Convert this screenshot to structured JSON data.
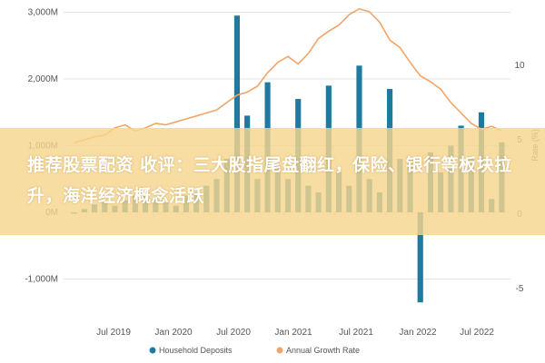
{
  "chart_data": {
    "type": "bar",
    "series": [
      {
        "name": "Household Deposits",
        "mark": "bar",
        "axis": "left",
        "color": "#1f7aa0",
        "values": [
          -20,
          50,
          120,
          150,
          100,
          180,
          250,
          300,
          200,
          150,
          100,
          250,
          300,
          400,
          500,
          800,
          2950,
          1450,
          500,
          1950,
          700,
          500,
          1700,
          400,
          300,
          1900,
          600,
          400,
          2200,
          500,
          300,
          1850,
          800,
          800,
          -1350,
          900,
          600,
          1000,
          1300,
          800,
          1500,
          200,
          1050
        ]
      },
      {
        "name": "Annual Growth Rate",
        "mark": "line",
        "axis": "right",
        "color": "#f2a46a",
        "values": [
          4.8,
          5.0,
          5.2,
          5.3,
          5.8,
          6.0,
          5.6,
          5.8,
          6.1,
          6.0,
          6.2,
          6.4,
          6.6,
          6.8,
          7.0,
          7.5,
          8.0,
          8.2,
          8.6,
          9.5,
          10.2,
          10.6,
          10.1,
          10.8,
          11.8,
          12.3,
          12.7,
          13.4,
          13.8,
          13.6,
          12.9,
          11.7,
          11.2,
          10.2,
          9.3,
          8.9,
          8.4,
          7.5,
          6.8,
          6.1,
          5.7,
          5.9,
          5.6
        ]
      }
    ],
    "x_tick_labels": [
      "Jul 2019",
      "Jan 2020",
      "Jul 2020",
      "Jan 2021",
      "Jul 2021",
      "Jan 2022",
      "Jul 2022"
    ],
    "y_left_ticks": [
      "3,000M",
      "2,000M",
      "1,000M",
      "0M",
      "-1,000M"
    ],
    "y_left_range": [
      -1500,
      3100
    ],
    "y_right_ticks": [
      "10",
      "5",
      "0",
      "-5"
    ],
    "y_right_range": [
      -7.5,
      14
    ],
    "y_right_label": "Rate (%)",
    "legend_position": "bottom"
  },
  "banner": {
    "text": "推荐股票配资 收评：三大股指尾盘翻红，保险、银行等板块拉升，海洋经济概念活跃"
  }
}
